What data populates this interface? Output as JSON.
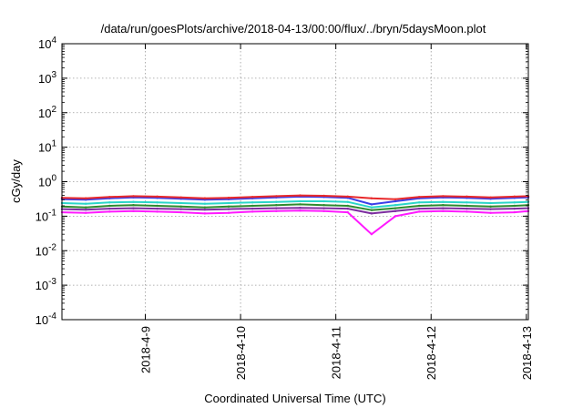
{
  "chart_data": {
    "type": "line",
    "title": "/data/run/goesPlots/archive/2018-04-13/00:00/flux/../bryn/5daysMoon.plot",
    "xlabel": "Coordinated Universal Time (UTC)",
    "ylabel": "cGy/day",
    "yscale": "log",
    "ylim": [
      0.0001,
      10000
    ],
    "xlim": [
      "2018-04-08T03:00",
      "2018-04-13T00:30"
    ],
    "grid": true,
    "y_ticks": [
      {
        "base": "10",
        "exp": "-4",
        "value": 0.0001
      },
      {
        "base": "10",
        "exp": "-3",
        "value": 0.001
      },
      {
        "base": "10",
        "exp": "-2",
        "value": 0.01
      },
      {
        "base": "10",
        "exp": "-1",
        "value": 0.1
      },
      {
        "base": "10",
        "exp": "0",
        "value": 1
      },
      {
        "base": "10",
        "exp": "1",
        "value": 10
      },
      {
        "base": "10",
        "exp": "2",
        "value": 100
      },
      {
        "base": "10",
        "exp": "3",
        "value": 1000
      },
      {
        "base": "10",
        "exp": "4",
        "value": 10000
      }
    ],
    "x_ticks": [
      {
        "label": "2018-4-9",
        "value": "2018-04-09T00:00"
      },
      {
        "label": "2018-4-10",
        "value": "2018-04-10T00:00"
      },
      {
        "label": "2018-4-11",
        "value": "2018-04-11T00:00"
      },
      {
        "label": "2018-4-12",
        "value": "2018-04-12T00:00"
      },
      {
        "label": "2018-4-13",
        "value": "2018-04-13T00:00"
      }
    ],
    "x": [
      "2018-04-08T03:00",
      "2018-04-08T09:00",
      "2018-04-08T15:00",
      "2018-04-08T21:00",
      "2018-04-09T03:00",
      "2018-04-09T09:00",
      "2018-04-09T15:00",
      "2018-04-09T21:00",
      "2018-04-10T03:00",
      "2018-04-10T09:00",
      "2018-04-10T15:00",
      "2018-04-10T21:00",
      "2018-04-11T03:00",
      "2018-04-11T09:00",
      "2018-04-11T15:00",
      "2018-04-11T21:00",
      "2018-04-12T03:00",
      "2018-04-12T09:00",
      "2018-04-12T15:00",
      "2018-04-12T21:00",
      "2018-04-13T00:30"
    ],
    "series": [
      {
        "color": "#e8282a",
        "values": [
          0.34,
          0.33,
          0.36,
          0.38,
          0.37,
          0.35,
          0.33,
          0.34,
          0.36,
          0.38,
          0.4,
          0.39,
          0.37,
          0.33,
          0.31,
          0.36,
          0.38,
          0.37,
          0.35,
          0.37,
          0.38
        ]
      },
      {
        "color": "#3a3ee8",
        "values": [
          0.31,
          0.3,
          0.33,
          0.35,
          0.34,
          0.32,
          0.3,
          0.31,
          0.33,
          0.35,
          0.37,
          0.36,
          0.34,
          0.22,
          0.27,
          0.33,
          0.35,
          0.34,
          0.32,
          0.34,
          0.35
        ]
      },
      {
        "color": "#2ad6c8",
        "values": [
          0.24,
          0.23,
          0.25,
          0.26,
          0.25,
          0.24,
          0.23,
          0.24,
          0.25,
          0.26,
          0.27,
          0.27,
          0.26,
          0.18,
          0.21,
          0.25,
          0.26,
          0.25,
          0.24,
          0.25,
          0.26
        ]
      },
      {
        "color": "#2e8a2e",
        "values": [
          0.19,
          0.18,
          0.2,
          0.21,
          0.2,
          0.19,
          0.18,
          0.19,
          0.2,
          0.21,
          0.22,
          0.21,
          0.2,
          0.15,
          0.17,
          0.2,
          0.21,
          0.2,
          0.19,
          0.2,
          0.21
        ]
      },
      {
        "color": "#7d2ea0",
        "values": [
          0.16,
          0.155,
          0.165,
          0.17,
          0.165,
          0.16,
          0.155,
          0.16,
          0.165,
          0.17,
          0.175,
          0.17,
          0.165,
          0.12,
          0.14,
          0.165,
          0.17,
          0.165,
          0.16,
          0.165,
          0.17
        ]
      },
      {
        "color": "#ff1aff",
        "values": [
          0.13,
          0.125,
          0.135,
          0.14,
          0.135,
          0.13,
          0.12,
          0.125,
          0.135,
          0.14,
          0.145,
          0.14,
          0.13,
          0.03,
          0.1,
          0.135,
          0.14,
          0.135,
          0.125,
          0.13,
          0.14
        ]
      }
    ]
  }
}
